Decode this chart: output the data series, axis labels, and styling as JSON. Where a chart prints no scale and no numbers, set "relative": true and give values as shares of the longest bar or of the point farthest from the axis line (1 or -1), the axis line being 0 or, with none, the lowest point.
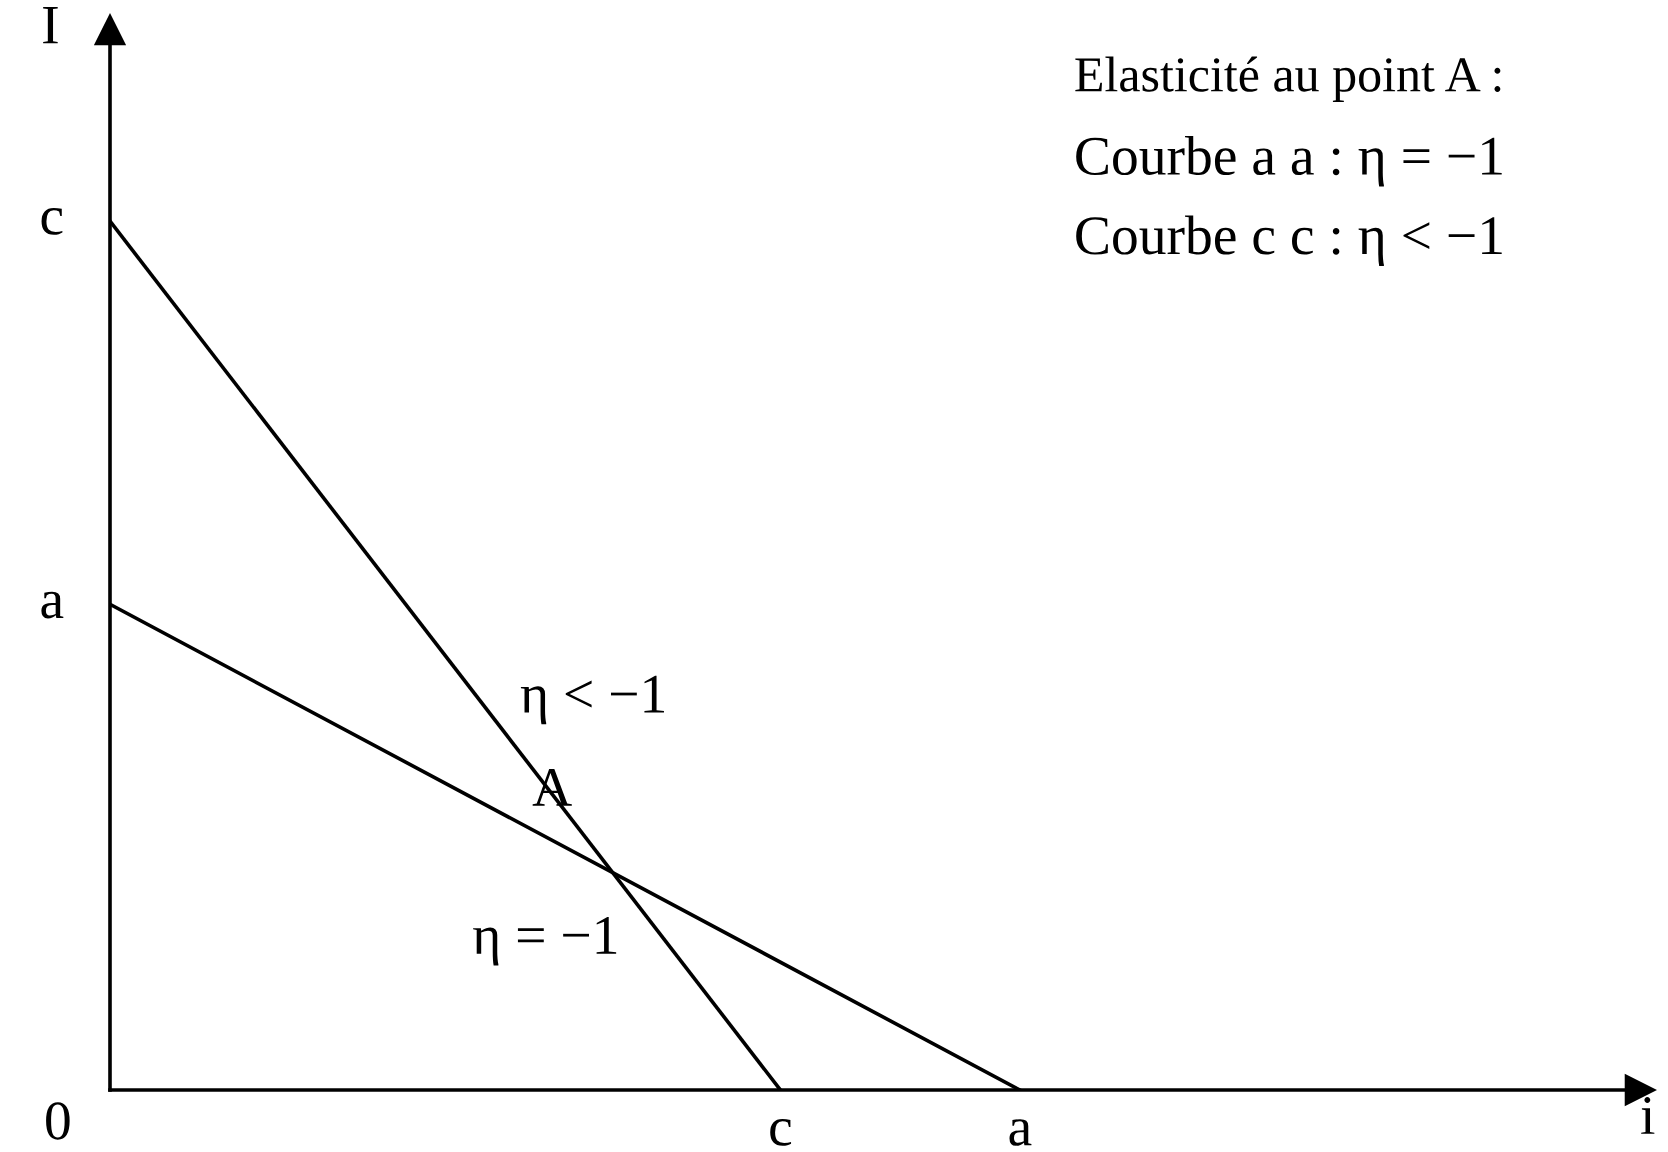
{
  "chart_data": {
    "type": "line",
    "relative": true,
    "xlabel": "i",
    "ylabel": "I",
    "categories": [
      null,
      null,
      null,
      null,
      null,
      null,
      null,
      null,
      null,
      null,
      null,
      null,
      null,
      null,
      "c",
      null,
      null,
      null,
      null,
      "a",
      null,
      null,
      null,
      null,
      null,
      null,
      null,
      null,
      null,
      null,
      null,
      null
    ],
    "series": [
      {
        "color": "#000000",
        "values": [
          0.559,
          null,
          null,
          null,
          null,
          null,
          null,
          null,
          null,
          null,
          null,
          null,
          null,
          null,
          null,
          null,
          null,
          null,
          null,
          0,
          null,
          null,
          null,
          null,
          null,
          null,
          null,
          null,
          null,
          null,
          null,
          null
        ]
      },
      {
        "color": "#000000",
        "values": [
          1,
          null,
          null,
          null,
          null,
          null,
          null,
          null,
          null,
          null,
          null,
          null,
          null,
          null,
          0,
          null,
          null,
          null,
          null,
          null,
          null,
          null,
          null,
          null,
          null,
          null,
          null,
          null,
          null,
          null,
          null,
          null
        ]
      }
    ],
    "annotations": [
      "Elasticité au point A :",
      "Courbe a a : η = −1",
      "Courbe c c : η < −1",
      "A",
      "η < −1",
      "η = −1",
      "0",
      "c",
      "a"
    ]
  }
}
